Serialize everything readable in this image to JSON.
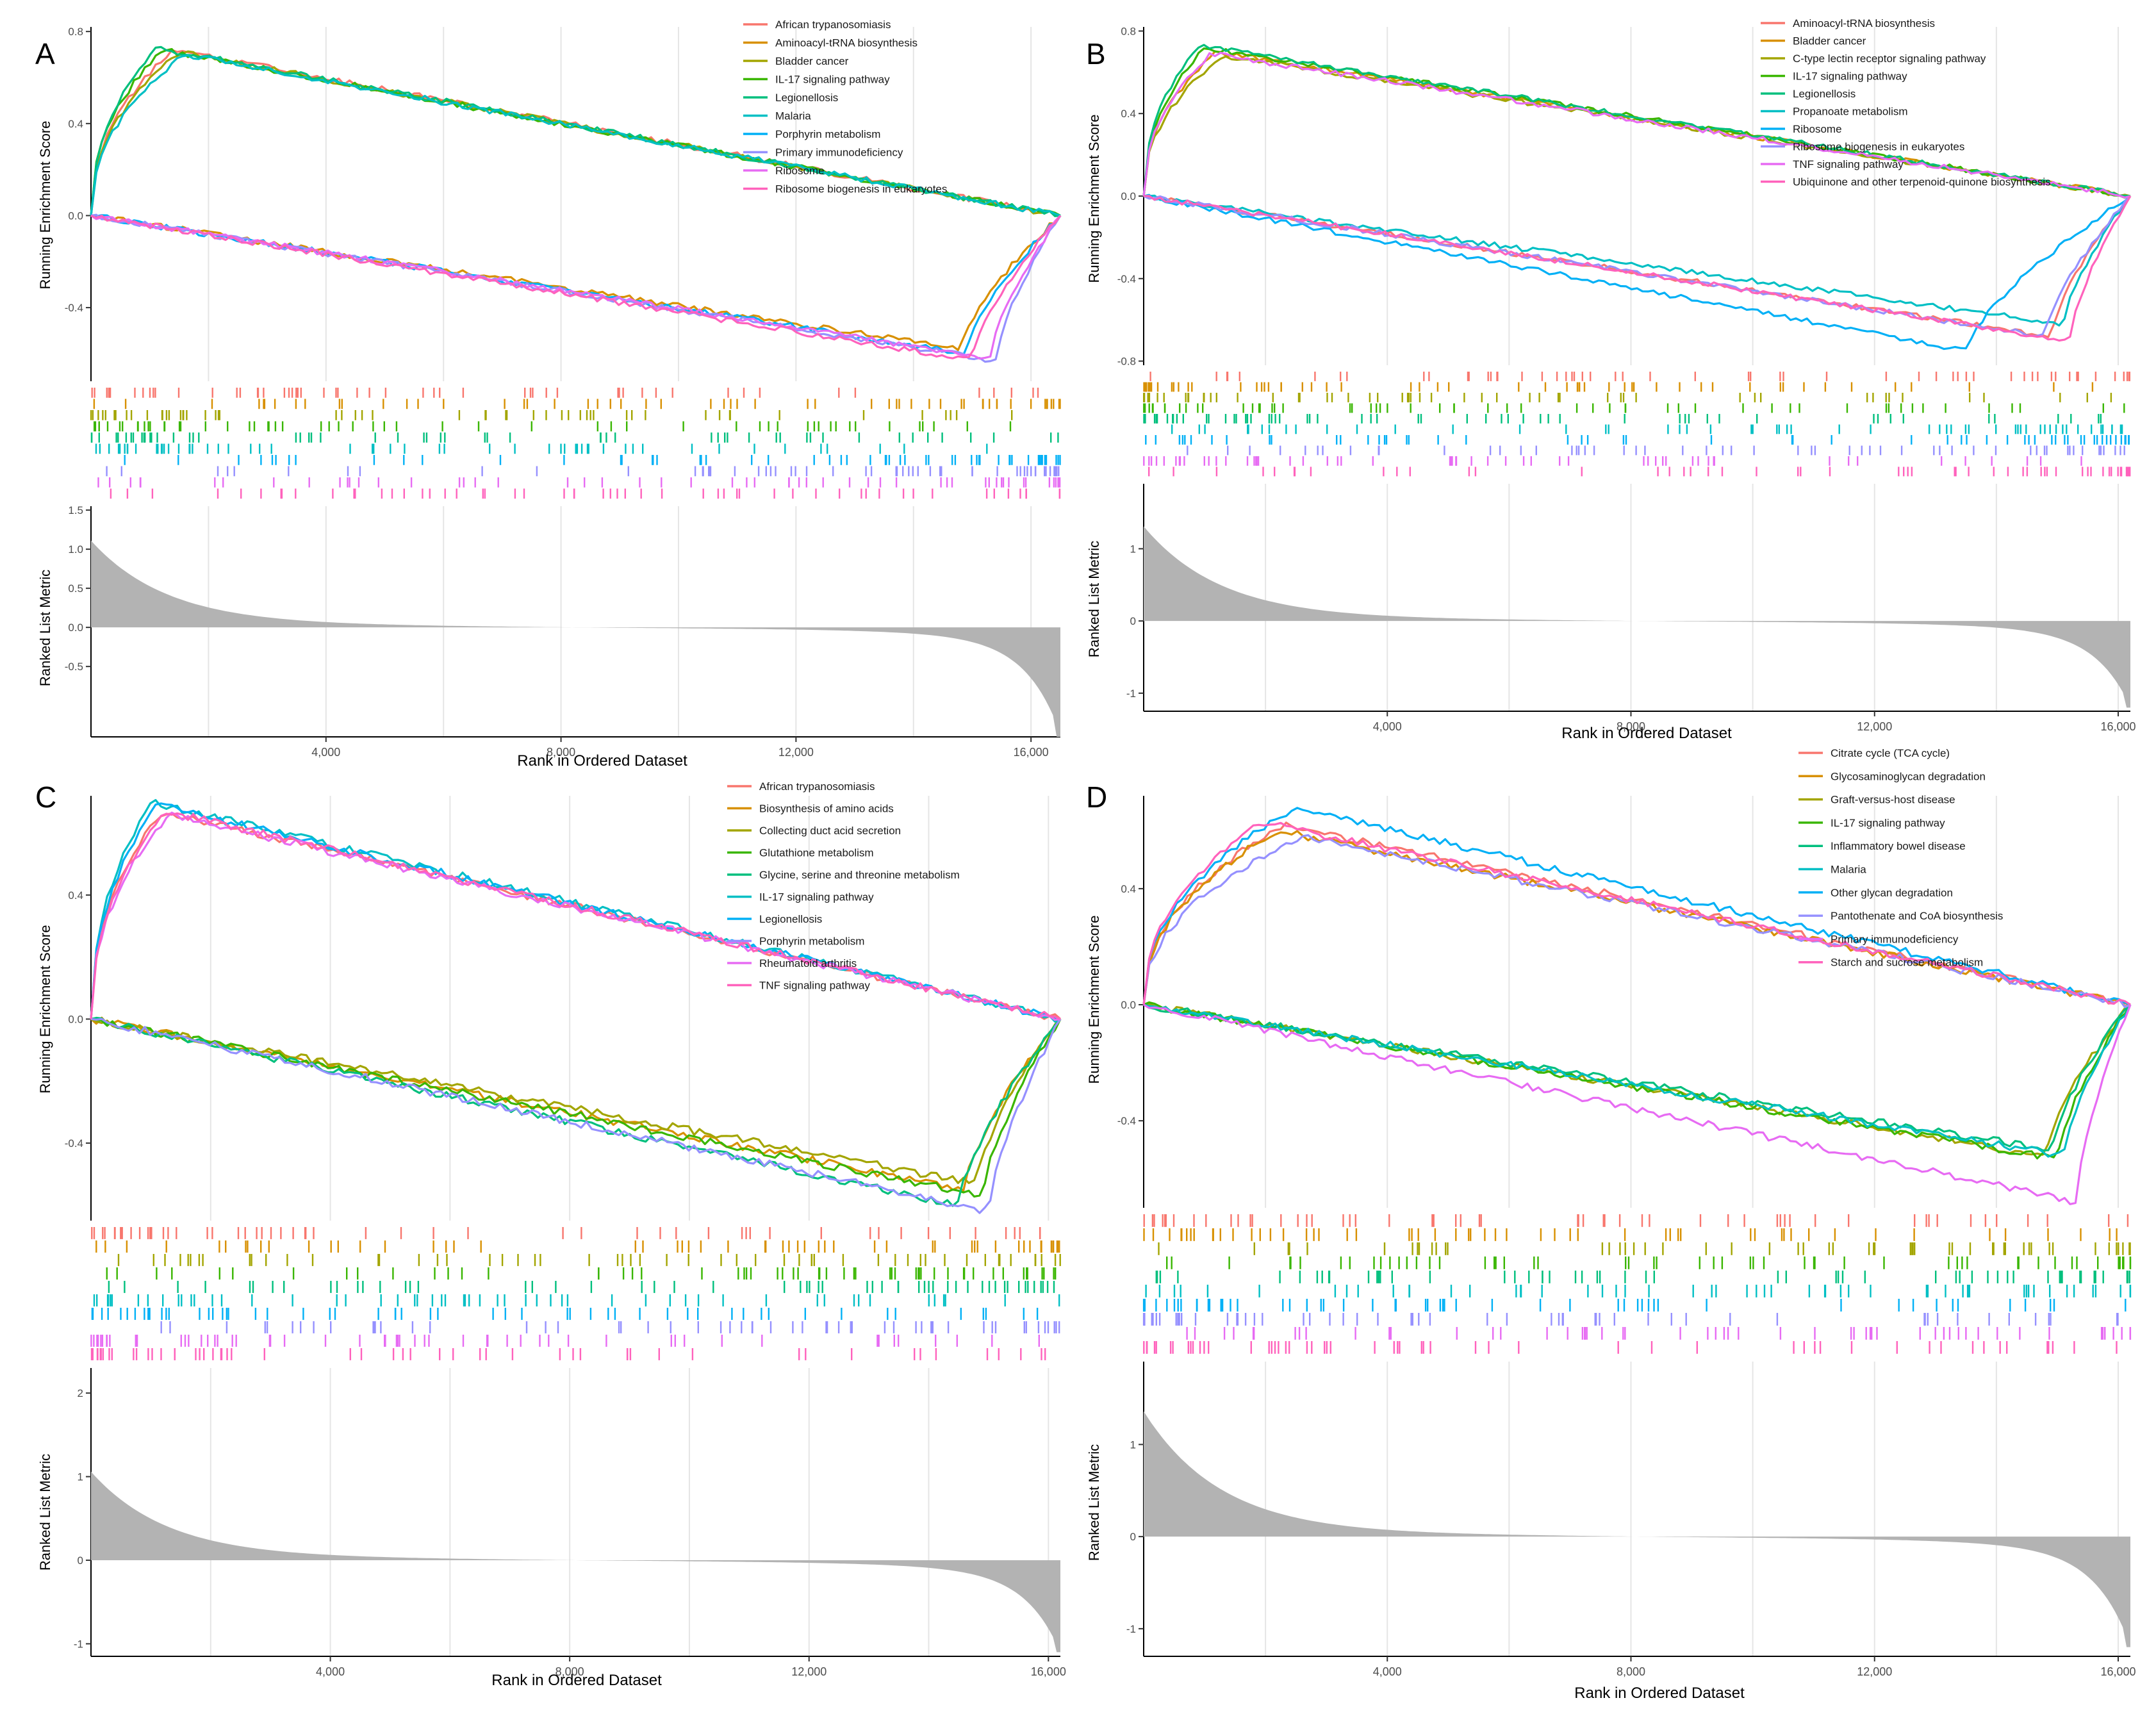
{
  "figure": {
    "colors": [
      "#F8766D",
      "#D89000",
      "#A3A500",
      "#39B600",
      "#00BF7D",
      "#00BFC4",
      "#00B0F6",
      "#9590FF",
      "#E76BF3",
      "#FF62BC"
    ],
    "metric_fill": "#b3b3b3",
    "grid_color": "#e5e5e5"
  },
  "chart_data": [
    {
      "type": "line",
      "panel": "A",
      "panel_label": "A",
      "ylabel_es": "Running Enrichment Score",
      "ylabel_rank": "Ranked List Metric",
      "xlabel": "Rank in Ordered Dataset",
      "xlim": [
        0,
        16500
      ],
      "xticks": [
        4000,
        8000,
        12000,
        16000
      ],
      "xtick_labels": [
        "4,000",
        "8,000",
        "12,000",
        "16,000"
      ],
      "es_ylim": [
        -0.72,
        0.82
      ],
      "es_yticks": [
        -0.4,
        0.0,
        0.4,
        0.8
      ],
      "es_ytick_labels": [
        "-0.4",
        "0.0",
        "0.4",
        "0.8"
      ],
      "rank_ylim": [
        -1.4,
        1.55
      ],
      "rank_yticks": [
        -0.5,
        0.0,
        0.5,
        1.0,
        1.5
      ],
      "rank_ytick_labels": [
        "-0.5",
        "0.0",
        "0.5",
        "1.0",
        "1.5"
      ],
      "rank_max": 1.05,
      "rank_min": -1.4,
      "series": [
        {
          "name": "African trypanosomiasis",
          "color_index": 0,
          "direction": "up",
          "peak": 0.72,
          "peak_rank": 1400
        },
        {
          "name": "Aminoacyl-tRNA biosynthesis",
          "color_index": 1,
          "direction": "down",
          "peak": -0.58,
          "peak_rank": 14800
        },
        {
          "name": "Bladder cancer",
          "color_index": 2,
          "direction": "up",
          "peak": 0.71,
          "peak_rank": 1500
        },
        {
          "name": "IL-17 signaling pathway",
          "color_index": 3,
          "direction": "up",
          "peak": 0.72,
          "peak_rank": 1200
        },
        {
          "name": "Legionellosis",
          "color_index": 4,
          "direction": "up",
          "peak": 0.73,
          "peak_rank": 1100
        },
        {
          "name": "Malaria",
          "color_index": 5,
          "direction": "up",
          "peak": 0.7,
          "peak_rank": 1600
        },
        {
          "name": "Porphyrin metabolism",
          "color_index": 6,
          "direction": "down",
          "peak": -0.6,
          "peak_rank": 14900
        },
        {
          "name": "Primary immunodeficiency",
          "color_index": 7,
          "direction": "down",
          "peak": -0.63,
          "peak_rank": 15400
        },
        {
          "name": "Ribosome",
          "color_index": 8,
          "direction": "down",
          "peak": -0.62,
          "peak_rank": 15300
        },
        {
          "name": "Ribosome biogenesis in eukaryotes",
          "color_index": 9,
          "direction": "down",
          "peak": -0.63,
          "peak_rank": 15000
        }
      ]
    },
    {
      "type": "line",
      "panel": "B",
      "panel_label": "B",
      "ylabel_es": "Running Enrichment Score",
      "ylabel_rank": "Ranked List Metric",
      "xlabel": "Rank in Ordered Dataset",
      "xlim": [
        0,
        16200
      ],
      "xticks": [
        4000,
        8000,
        12000,
        16000
      ],
      "xtick_labels": [
        "4,000",
        "8,000",
        "12,000",
        "16,000"
      ],
      "es_ylim": [
        -0.82,
        0.82
      ],
      "es_yticks": [
        -0.8,
        -0.4,
        0.0,
        0.4,
        0.8
      ],
      "es_ytick_labels": [
        "-0.8",
        "-0.4",
        "0.0",
        "0.4",
        "0.8"
      ],
      "rank_ylim": [
        -1.25,
        1.9
      ],
      "rank_yticks": [
        -1,
        0,
        1
      ],
      "rank_ytick_labels": [
        "-1",
        "0",
        "1"
      ],
      "rank_max": 1.25,
      "rank_min": -1.2,
      "series": [
        {
          "name": "Aminoacyl-tRNA biosynthesis",
          "color_index": 0,
          "direction": "down",
          "peak": -0.68,
          "peak_rank": 14900
        },
        {
          "name": "Bladder cancer",
          "color_index": 1,
          "direction": "up",
          "peak": 0.7,
          "peak_rank": 1200
        },
        {
          "name": "C-type lectin receptor signaling pathway",
          "color_index": 2,
          "direction": "up",
          "peak": 0.68,
          "peak_rank": 1300
        },
        {
          "name": "IL-17 signaling pathway",
          "color_index": 3,
          "direction": "up",
          "peak": 0.72,
          "peak_rank": 1000
        },
        {
          "name": "Legionellosis",
          "color_index": 4,
          "direction": "up",
          "peak": 0.73,
          "peak_rank": 900
        },
        {
          "name": "Propanoate metabolism",
          "color_index": 5,
          "direction": "down",
          "peak": -0.62,
          "peak_rank": 15100
        },
        {
          "name": "Ribosome",
          "color_index": 6,
          "direction": "down",
          "peak": -0.75,
          "peak_rank": 13500
        },
        {
          "name": "Ribosome biogenesis in eukaryotes",
          "color_index": 7,
          "direction": "down",
          "peak": -0.68,
          "peak_rank": 14800
        },
        {
          "name": "TNF signaling pathway",
          "color_index": 8,
          "direction": "up",
          "peak": 0.69,
          "peak_rank": 1100
        },
        {
          "name": "Ubiquinone and other terpenoid-quinone biosynthesis",
          "color_index": 9,
          "direction": "down",
          "peak": -0.7,
          "peak_rank": 15200
        }
      ]
    },
    {
      "type": "line",
      "panel": "C",
      "panel_label": "C",
      "ylabel_es": "Running Enrichment Score",
      "ylabel_rank": "Ranked List Metric",
      "xlabel": "Rank in Ordered Dataset",
      "xlim": [
        0,
        16200
      ],
      "xticks": [
        4000,
        8000,
        12000,
        16000
      ],
      "xtick_labels": [
        "4,000",
        "8,000",
        "12,000",
        "16,000"
      ],
      "es_ylim": [
        -0.65,
        0.72
      ],
      "es_yticks": [
        -0.4,
        0.0,
        0.4
      ],
      "es_ytick_labels": [
        "-0.4",
        "0.0",
        "0.4"
      ],
      "rank_ylim": [
        -1.15,
        2.3
      ],
      "rank_yticks": [
        -1,
        0,
        1,
        2
      ],
      "rank_ytick_labels": [
        "-1",
        "0",
        "1",
        "2"
      ],
      "rank_max": 1.0,
      "rank_min": -1.1,
      "series": [
        {
          "name": "African trypanosomiasis",
          "color_index": 0,
          "direction": "up",
          "peak": 0.67,
          "peak_rank": 1200
        },
        {
          "name": "Biosynthesis of amino acids",
          "color_index": 1,
          "direction": "down",
          "peak": -0.55,
          "peak_rank": 14600
        },
        {
          "name": "Collecting duct acid secretion",
          "color_index": 2,
          "direction": "down",
          "peak": -0.53,
          "peak_rank": 14800
        },
        {
          "name": "Glutathione metabolism",
          "color_index": 3,
          "direction": "down",
          "peak": -0.57,
          "peak_rank": 14900
        },
        {
          "name": "Glycine, serine and threonine metabolism",
          "color_index": 4,
          "direction": "down",
          "peak": -0.6,
          "peak_rank": 14500
        },
        {
          "name": "IL-17 signaling pathway",
          "color_index": 5,
          "direction": "up",
          "peak": 0.7,
          "peak_rank": 1000
        },
        {
          "name": "Legionellosis",
          "color_index": 6,
          "direction": "up",
          "peak": 0.69,
          "peak_rank": 1100
        },
        {
          "name": "Porphyrin metabolism",
          "color_index": 7,
          "direction": "down",
          "peak": -0.62,
          "peak_rank": 15000
        },
        {
          "name": "Rheumatoid arthritis",
          "color_index": 8,
          "direction": "up",
          "peak": 0.66,
          "peak_rank": 1300
        },
        {
          "name": "TNF signaling pathway",
          "color_index": 9,
          "direction": "up",
          "peak": 0.67,
          "peak_rank": 1250
        }
      ]
    },
    {
      "type": "line",
      "panel": "D",
      "panel_label": "D",
      "ylabel_es": "Running Enrichment Score",
      "ylabel_rank": "Ranked List Metric",
      "xlabel": "Rank in Ordered Dataset",
      "xlim": [
        0,
        16200
      ],
      "xticks": [
        4000,
        8000,
        12000,
        16000
      ],
      "xtick_labels": [
        "4,000",
        "8,000",
        "12,000",
        "16,000"
      ],
      "es_ylim": [
        -0.7,
        0.72
      ],
      "es_yticks": [
        -0.4,
        0.0,
        0.4
      ],
      "es_ytick_labels": [
        "-0.4",
        "0.0",
        "0.4"
      ],
      "rank_ylim": [
        -1.3,
        1.9
      ],
      "rank_yticks": [
        -1,
        0,
        1
      ],
      "rank_ytick_labels": [
        "-1",
        "0",
        "1"
      ],
      "rank_max": 1.3,
      "rank_min": -1.2,
      "series": [
        {
          "name": "Citrate cycle (TCA cycle)",
          "color_index": 0,
          "direction": "up",
          "peak": 0.62,
          "peak_rank": 2300
        },
        {
          "name": "Glycosaminoglycan degradation",
          "color_index": 1,
          "direction": "up",
          "peak": 0.6,
          "peak_rank": 2200
        },
        {
          "name": "Graft-versus-host disease",
          "color_index": 2,
          "direction": "down",
          "peak": -0.52,
          "peak_rank": 14800
        },
        {
          "name": "IL-17 signaling pathway",
          "color_index": 3,
          "direction": "down",
          "peak": -0.53,
          "peak_rank": 15000
        },
        {
          "name": "Inflammatory bowel disease",
          "color_index": 4,
          "direction": "down",
          "peak": -0.5,
          "peak_rank": 14900
        },
        {
          "name": "Malaria",
          "color_index": 5,
          "direction": "down",
          "peak": -0.52,
          "peak_rank": 15100
        },
        {
          "name": "Other glycan degradation",
          "color_index": 6,
          "direction": "up",
          "peak": 0.68,
          "peak_rank": 2500
        },
        {
          "name": "Pantothenate and CoA biosynthesis",
          "color_index": 7,
          "direction": "up",
          "peak": 0.58,
          "peak_rank": 2600
        },
        {
          "name": "Primary immunodeficiency",
          "color_index": 8,
          "direction": "down",
          "peak": -0.68,
          "peak_rank": 15300
        },
        {
          "name": "Starch and sucrose metabolism",
          "color_index": 9,
          "direction": "up",
          "peak": 0.63,
          "peak_rank": 1900
        }
      ]
    }
  ]
}
